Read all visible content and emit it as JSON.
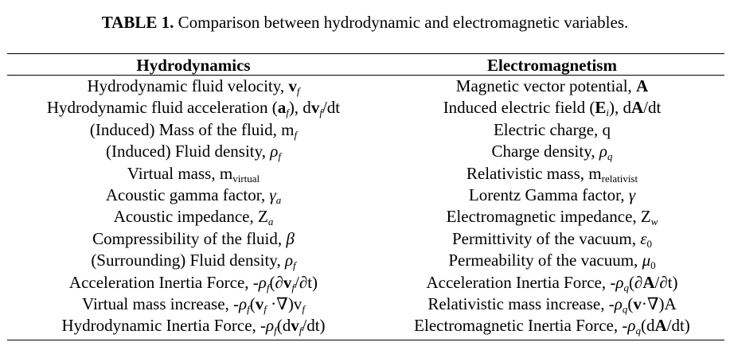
{
  "caption": {
    "label": "TABLE 1.",
    "text": " Comparison between hydrodynamic and electromagnetic variables."
  },
  "headers": [
    "Hydrodynamics",
    "Electromagnetism"
  ],
  "rows": [
    {
      "hydro": "Hydrodynamic fluid velocity, v_f",
      "em": "Magnetic vector potential, A"
    },
    {
      "hydro": "Hydrodynamic fluid acceleration (a_f), dv_f/dt",
      "em": "Induced electric field (E_i), dA/dt"
    },
    {
      "hydro": "(Induced) Mass of the fluid, m_f",
      "em": "Electric charge, q"
    },
    {
      "hydro": "(Induced) Fluid density, ρ_f",
      "em": "Charge density, ρ_q"
    },
    {
      "hydro": "Virtual mass, m_virtual",
      "em": "Relativistic mass, m_relativist"
    },
    {
      "hydro": "Acoustic gamma factor, γ_a",
      "em": "Lorentz Gamma factor, γ"
    },
    {
      "hydro": "Acoustic impedance, Z_a",
      "em": "Electromagnetic impedance, Z_w"
    },
    {
      "hydro": "Compressibility of the fluid, β",
      "em": "Permittivity of the vacuum, ε_0"
    },
    {
      "hydro": "(Surrounding) Fluid density, ρ_f",
      "em": "Permeability of the vacuum, μ_0"
    },
    {
      "hydro": "Acceleration Inertia Force, -ρ_f(∂v_f/∂t)",
      "em": "Acceleration Inertia Force, -ρ_q(∂A/∂t)"
    },
    {
      "hydro": "Virtual mass increase, -ρ_f(v_f ·∇)v_f",
      "em": "Relativistic mass increase, -ρ_q(v·∇)A"
    },
    {
      "hydro": "Hydrodynamic Inertia Force, -ρ_f(dv_f/dt)",
      "em": "Electromagnetic Inertia Force, -ρ_q(dA/dt)"
    }
  ]
}
